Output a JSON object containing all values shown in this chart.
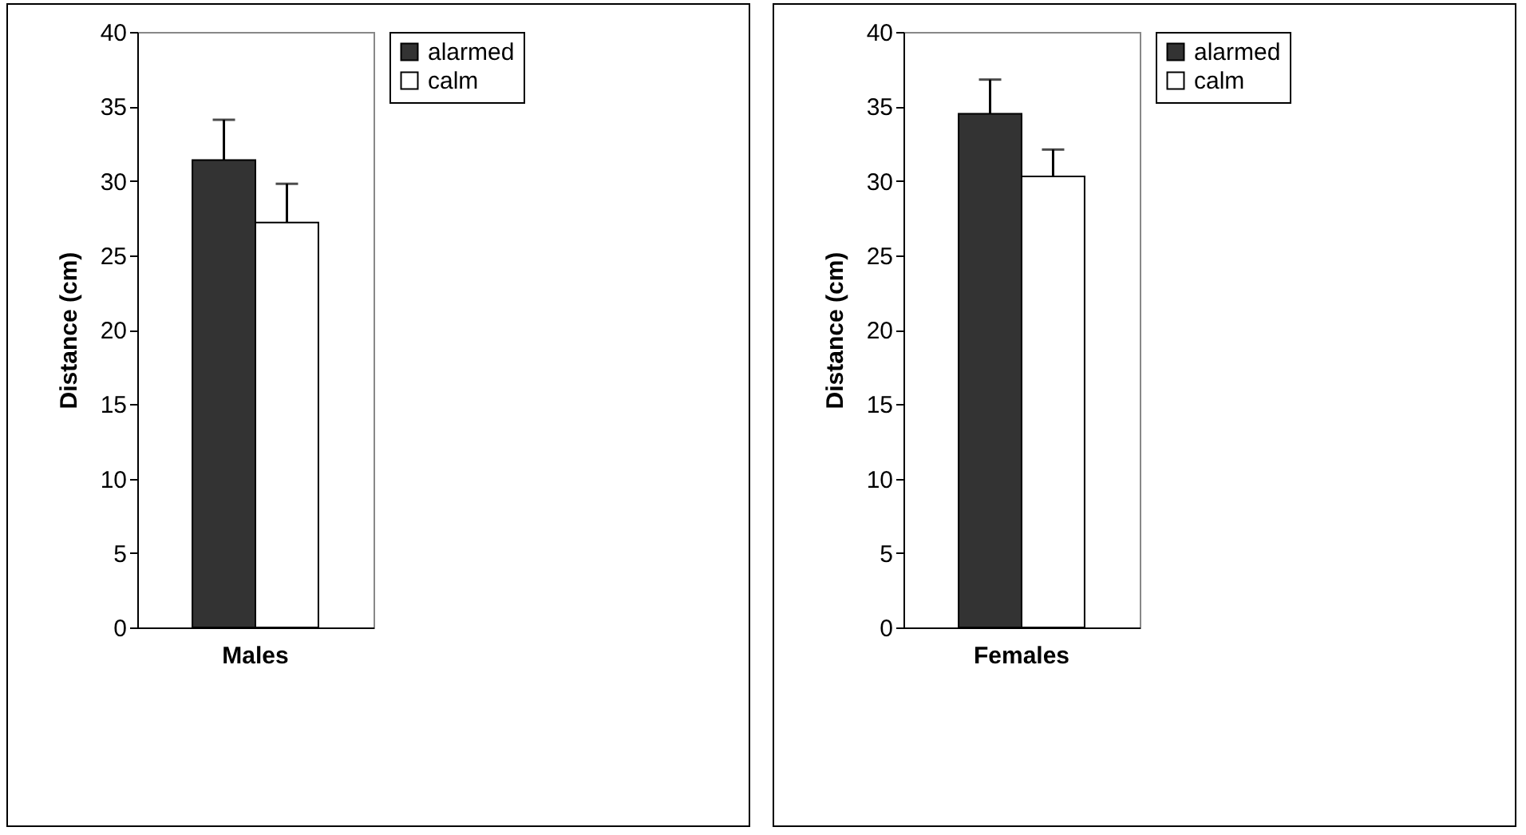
{
  "chart_data": [
    {
      "type": "bar",
      "ylabel": "Distance  (cm)",
      "categories": [
        "Males"
      ],
      "ylim": [
        0,
        40
      ],
      "yticks": [
        0,
        5,
        10,
        15,
        20,
        25,
        30,
        35,
        40
      ],
      "legend": "right",
      "series": [
        {
          "name": "alarmed",
          "color": "#333333",
          "values": [
            31.4
          ],
          "errors": [
            [
              31.4,
              34.1
            ]
          ]
        },
        {
          "name": "calm",
          "color": "#ffffff",
          "values": [
            27.2
          ],
          "errors": [
            [
              27.2,
              29.8
            ]
          ]
        }
      ]
    },
    {
      "type": "bar",
      "ylabel": "Distance (cm)",
      "categories": [
        "Females"
      ],
      "ylim": [
        0,
        40
      ],
      "yticks": [
        0,
        5,
        10,
        15,
        20,
        25,
        30,
        35,
        40
      ],
      "legend": "right",
      "series": [
        {
          "name": "alarmed",
          "color": "#333333",
          "values": [
            34.5
          ],
          "errors": [
            [
              34.5,
              36.8
            ]
          ]
        },
        {
          "name": "calm",
          "color": "#ffffff",
          "values": [
            30.3
          ],
          "errors": [
            [
              30.3,
              32.1
            ]
          ]
        }
      ]
    }
  ]
}
